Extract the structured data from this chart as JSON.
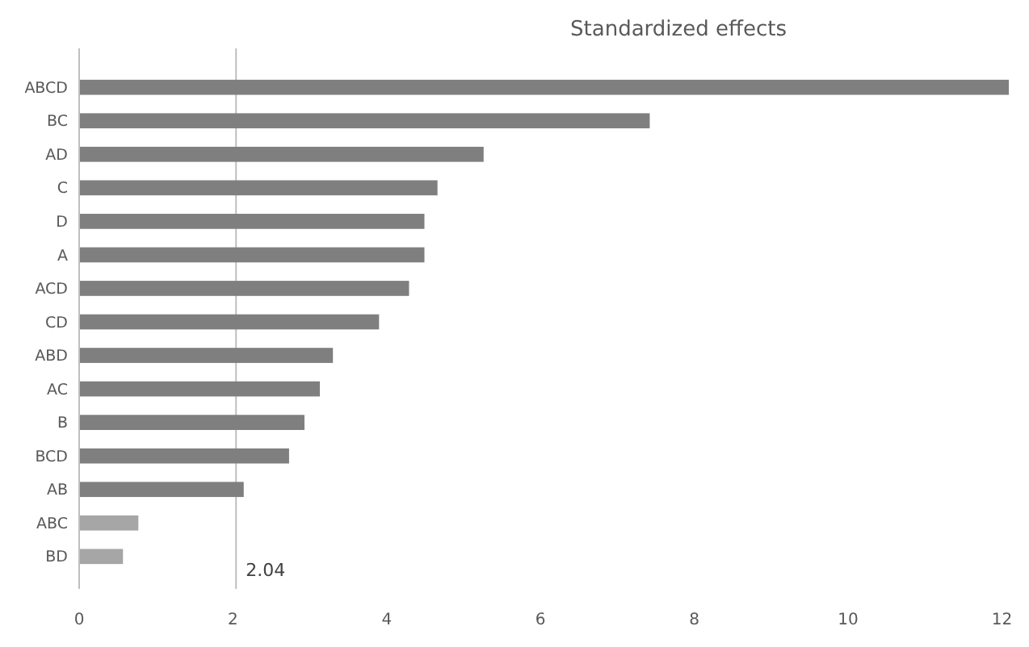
{
  "chart_data": {
    "type": "bar",
    "orientation": "horizontal",
    "title": "Standardized effects",
    "categories": [
      "ABCD",
      "BC",
      "AD",
      "C",
      "D",
      "A",
      "ACD",
      "CD",
      "ABD",
      "AC",
      "B",
      "BCD",
      "AB",
      "ABC",
      "BD"
    ],
    "values": [
      12.09,
      7.42,
      5.26,
      4.66,
      4.49,
      4.49,
      4.29,
      3.9,
      3.3,
      3.13,
      2.93,
      2.73,
      2.14,
      0.77,
      0.57
    ],
    "colors": [
      "#7f7f7f",
      "#7f7f7f",
      "#7f7f7f",
      "#7f7f7f",
      "#7f7f7f",
      "#7f7f7f",
      "#7f7f7f",
      "#7f7f7f",
      "#7f7f7f",
      "#7f7f7f",
      "#7f7f7f",
      "#7f7f7f",
      "#7f7f7f",
      "#a6a6a6",
      "#a6a6a6"
    ],
    "xlim": [
      0,
      12.1
    ],
    "xticks": [
      0,
      2,
      4,
      6,
      8,
      10,
      12
    ],
    "ref_lines": [
      {
        "axis": "x",
        "value": 2.04,
        "label": "2.04",
        "color": "#bfbfbf"
      }
    ],
    "grid": false
  }
}
